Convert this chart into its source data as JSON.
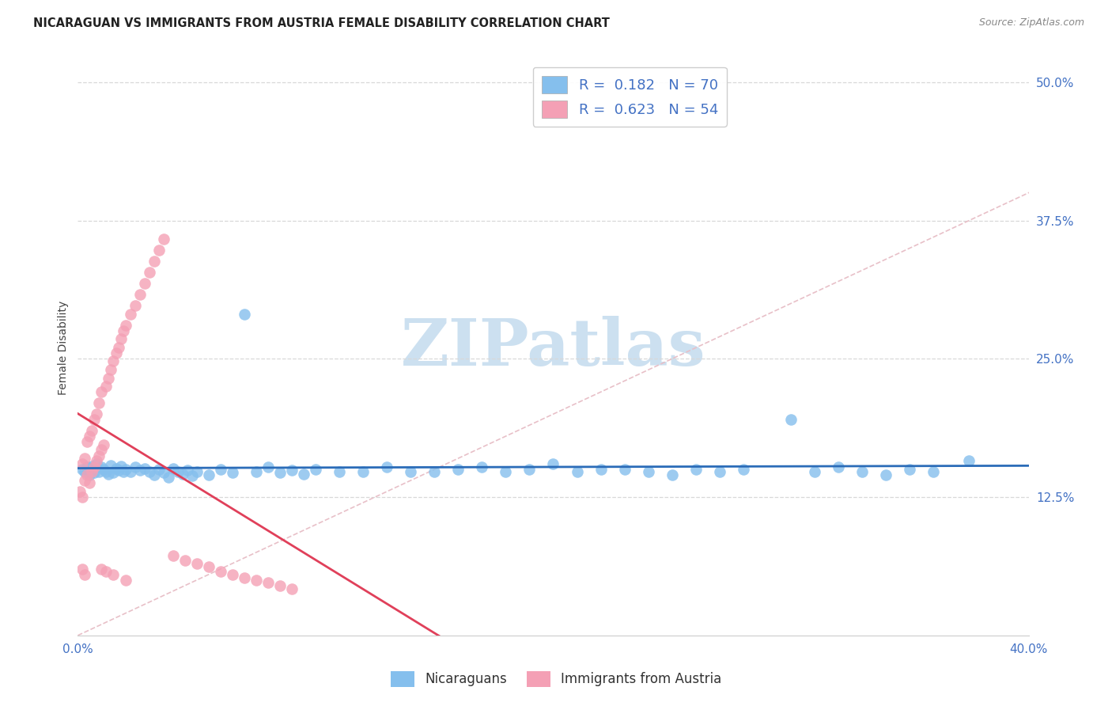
{
  "title": "NICARAGUAN VS IMMIGRANTS FROM AUSTRIA FEMALE DISABILITY CORRELATION CHART",
  "source": "Source: ZipAtlas.com",
  "ylabel": "Female Disability",
  "xlim": [
    0.0,
    0.4
  ],
  "ylim": [
    0.0,
    0.52
  ],
  "xticks": [
    0.0,
    0.05,
    0.1,
    0.15,
    0.2,
    0.25,
    0.3,
    0.35,
    0.4
  ],
  "xticklabels": [
    "0.0%",
    "",
    "",
    "",
    "",
    "",
    "",
    "",
    "40.0%"
  ],
  "yticks_right": [
    0.125,
    0.25,
    0.375,
    0.5
  ],
  "yticklabels_right": [
    "12.5%",
    "25.0%",
    "37.5%",
    "50.0%"
  ],
  "blue_color": "#85bfed",
  "pink_color": "#f4a0b5",
  "blue_line_color": "#2b6cb8",
  "pink_line_color": "#e0405a",
  "diag_color": "#e8c0c8",
  "watermark_text": "ZIPatlas",
  "watermark_color": "#cce0f0",
  "title_fontsize": 10.5,
  "tick_fontsize": 11,
  "legend_fontsize": 13,
  "blue_x": [
    0.002,
    0.003,
    0.004,
    0.005,
    0.006,
    0.007,
    0.008,
    0.009,
    0.01,
    0.011,
    0.012,
    0.013,
    0.014,
    0.015,
    0.016,
    0.017,
    0.018,
    0.019,
    0.02,
    0.022,
    0.024,
    0.026,
    0.028,
    0.03,
    0.032,
    0.034,
    0.036,
    0.038,
    0.04,
    0.042,
    0.044,
    0.046,
    0.048,
    0.05,
    0.055,
    0.06,
    0.065,
    0.07,
    0.075,
    0.08,
    0.085,
    0.09,
    0.095,
    0.1,
    0.11,
    0.12,
    0.13,
    0.14,
    0.15,
    0.16,
    0.17,
    0.18,
    0.19,
    0.2,
    0.21,
    0.22,
    0.23,
    0.24,
    0.25,
    0.26,
    0.27,
    0.28,
    0.3,
    0.31,
    0.32,
    0.33,
    0.34,
    0.35,
    0.36,
    0.375
  ],
  "blue_y": [
    0.15,
    0.148,
    0.152,
    0.145,
    0.153,
    0.147,
    0.155,
    0.148,
    0.152,
    0.15,
    0.148,
    0.146,
    0.154,
    0.147,
    0.151,
    0.149,
    0.153,
    0.148,
    0.15,
    0.148,
    0.152,
    0.149,
    0.151,
    0.148,
    0.145,
    0.15,
    0.147,
    0.143,
    0.151,
    0.148,
    0.146,
    0.149,
    0.144,
    0.148,
    0.145,
    0.15,
    0.147,
    0.29,
    0.148,
    0.152,
    0.147,
    0.149,
    0.146,
    0.15,
    0.148,
    0.148,
    0.152,
    0.148,
    0.148,
    0.15,
    0.152,
    0.148,
    0.15,
    0.155,
    0.148,
    0.15,
    0.15,
    0.148,
    0.145,
    0.15,
    0.148,
    0.15,
    0.195,
    0.148,
    0.152,
    0.148,
    0.145,
    0.15,
    0.148,
    0.158
  ],
  "pink_x": [
    0.001,
    0.002,
    0.002,
    0.003,
    0.003,
    0.004,
    0.004,
    0.005,
    0.005,
    0.006,
    0.006,
    0.007,
    0.007,
    0.008,
    0.008,
    0.009,
    0.009,
    0.01,
    0.01,
    0.011,
    0.012,
    0.013,
    0.014,
    0.015,
    0.016,
    0.017,
    0.018,
    0.019,
    0.02,
    0.022,
    0.024,
    0.026,
    0.028,
    0.03,
    0.032,
    0.034,
    0.036,
    0.04,
    0.045,
    0.05,
    0.055,
    0.06,
    0.065,
    0.07,
    0.075,
    0.08,
    0.085,
    0.09,
    0.01,
    0.012,
    0.015,
    0.02,
    0.002,
    0.003
  ],
  "pink_y": [
    0.13,
    0.125,
    0.155,
    0.14,
    0.16,
    0.145,
    0.175,
    0.138,
    0.18,
    0.148,
    0.185,
    0.152,
    0.195,
    0.158,
    0.2,
    0.162,
    0.21,
    0.168,
    0.22,
    0.172,
    0.225,
    0.232,
    0.24,
    0.248,
    0.255,
    0.26,
    0.268,
    0.275,
    0.28,
    0.29,
    0.298,
    0.308,
    0.318,
    0.328,
    0.338,
    0.348,
    0.358,
    0.072,
    0.068,
    0.065,
    0.062,
    0.058,
    0.055,
    0.052,
    0.05,
    0.048,
    0.045,
    0.042,
    0.06,
    0.058,
    0.055,
    0.05,
    0.06,
    0.055
  ]
}
